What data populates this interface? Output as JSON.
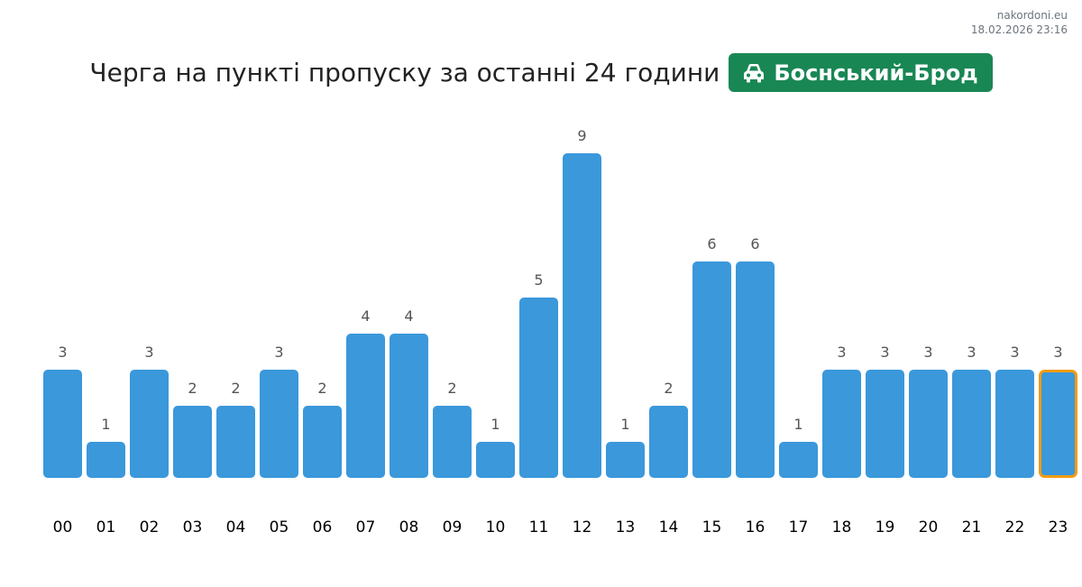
{
  "source": {
    "site": "nakordoni.eu",
    "timestamp": "18.02.2026 23:16"
  },
  "header": {
    "title": "Черга на пункті пропуску за останні 24 години",
    "checkpoint": "Боснський-Брод",
    "checkpoint_icon": "car-icon",
    "badge_color": "#198754"
  },
  "chart_data": {
    "type": "bar",
    "title": "Черга на пункті пропуску за останні 24 години",
    "xlabel": "",
    "ylabel": "",
    "categories": [
      "00",
      "01",
      "02",
      "03",
      "04",
      "05",
      "06",
      "07",
      "08",
      "09",
      "10",
      "11",
      "12",
      "13",
      "14",
      "15",
      "16",
      "17",
      "18",
      "19",
      "20",
      "21",
      "22",
      "23"
    ],
    "values": [
      3,
      1,
      3,
      2,
      2,
      3,
      2,
      4,
      4,
      2,
      1,
      5,
      9,
      1,
      2,
      6,
      6,
      1,
      3,
      3,
      3,
      3,
      3,
      3
    ],
    "ylim": [
      0,
      9
    ],
    "grid": false,
    "bar_color": "#3a98db",
    "highlight_index": 23,
    "highlight_color": "#f39c12"
  }
}
